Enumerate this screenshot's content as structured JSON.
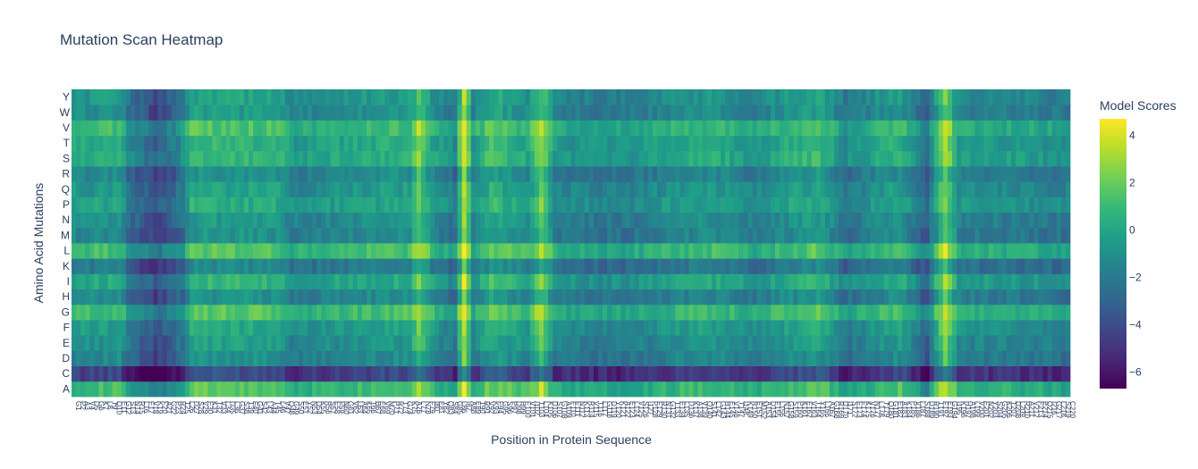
{
  "chart_data": {
    "type": "heatmap",
    "title": "Mutation Scan Heatmap",
    "xlabel": "Position in Protein Sequence",
    "ylabel": "Amino Acid Mutations",
    "y_categories": [
      "A",
      "C",
      "D",
      "E",
      "F",
      "G",
      "H",
      "I",
      "K",
      "L",
      "M",
      "N",
      "P",
      "Q",
      "R",
      "S",
      "T",
      "V",
      "W",
      "Y"
    ],
    "num_positions": 220,
    "colorscale": "Viridis",
    "colorscale_stops": [
      "#440154",
      "#482878",
      "#3e4989",
      "#31688e",
      "#26828e",
      "#1f9e89",
      "#35b779",
      "#6ece58",
      "#b5de2b",
      "#fde725"
    ],
    "zmin": -6.7,
    "zmax": 4.7,
    "colorbar": {
      "title": "Model Scores",
      "ticks": [
        4,
        2,
        0,
        -2,
        -4,
        -6
      ],
      "tick_labels": [
        "4",
        "2",
        "0",
        "−2",
        "−4",
        "−6"
      ]
    },
    "row_bias": {
      "A": 1.0,
      "C": -4.5,
      "D": -1.5,
      "E": -1.0,
      "F": -0.5,
      "G": 1.0,
      "H": -1.5,
      "I": 0.0,
      "K": -2.0,
      "L": 1.0,
      "M": -1.5,
      "N": -1.2,
      "P": -0.3,
      "Q": -0.8,
      "R": -1.5,
      "S": 0.2,
      "T": 0.0,
      "V": 0.8,
      "W": -1.2,
      "Y": -0.8
    },
    "column_profile_keypoints": [
      {
        "position": 0,
        "score": 0.0
      },
      {
        "position": 10,
        "score": 0.3
      },
      {
        "position": 12,
        "score": -1.0
      },
      {
        "position": 18,
        "score": -2.5
      },
      {
        "position": 24,
        "score": -1.0
      },
      {
        "position": 26,
        "score": 0.8
      },
      {
        "position": 45,
        "score": 0.5
      },
      {
        "position": 48,
        "score": -0.5
      },
      {
        "position": 60,
        "score": 0.0
      },
      {
        "position": 74,
        "score": 0.4
      },
      {
        "position": 76,
        "score": 2.5
      },
      {
        "position": 79,
        "score": 0.0
      },
      {
        "position": 84,
        "score": -1.0
      },
      {
        "position": 86,
        "score": 4.0
      },
      {
        "position": 88,
        "score": -0.5
      },
      {
        "position": 92,
        "score": 1.2
      },
      {
        "position": 100,
        "score": 0.0
      },
      {
        "position": 103,
        "score": 2.5
      },
      {
        "position": 106,
        "score": -0.5
      },
      {
        "position": 120,
        "score": -0.8
      },
      {
        "position": 140,
        "score": 0.2
      },
      {
        "position": 150,
        "score": -0.5
      },
      {
        "position": 164,
        "score": 0.8
      },
      {
        "position": 170,
        "score": -1.0
      },
      {
        "position": 182,
        "score": 0.5
      },
      {
        "position": 188,
        "score": -1.8
      },
      {
        "position": 192,
        "score": 3.0
      },
      {
        "position": 195,
        "score": -0.3
      },
      {
        "position": 210,
        "score": -0.5
      },
      {
        "position": 219,
        "score": -0.8
      }
    ],
    "x_tick_labels": [
      "G1",
      "P2",
      "A3",
      "V4",
      "D5",
      "G6",
      "K7",
      "L8",
      "T9",
      "Q10",
      "E11",
      "G12",
      "S13",
      "N14",
      "R15",
      "L16",
      "E17",
      "V18",
      "K19",
      "F20",
      "A21",
      "G22",
      "P23",
      "R24",
      "T25",
      "L26",
      "D27",
      "S28",
      "V29",
      "E30",
      "K31",
      "T32",
      "V33",
      "L34",
      "D35",
      "L36",
      "G37",
      "S38",
      "T39",
      "F40",
      "G41",
      "S42",
      "L43",
      "A44",
      "T45",
      "L46",
      "V47",
      "Q48",
      "G49",
      "S50",
      "E51",
      "Y52",
      "N53",
      "D54",
      "K55",
      "R56",
      "S57",
      "E58",
      "F59",
      "N60",
      "G61",
      "V62",
      "L63",
      "A64",
      "K65",
      "T66",
      "H67",
      "E68",
      "V69",
      "M70",
      "P71",
      "R72",
      "T73",
      "G74",
      "K75",
      "A76",
      "L77",
      "N78",
      "F79",
      "I80",
      "E81",
      "Y82",
      "Q83",
      "S84",
      "G85",
      "L86",
      "I87",
      "A88",
      "E89",
      "T90",
      "R91",
      "V92",
      "K93",
      "F94",
      "G95",
      "S96",
      "P97",
      "D98",
      "H99",
      "E100",
      "V101",
      "I102",
      "T103",
      "L104",
      "K105",
      "D106",
      "S107",
      "G108",
      "A109",
      "F110",
      "E111",
      "N112",
      "K113",
      "R114",
      "V115",
      "T116",
      "L117",
      "G118",
      "D119",
      "Y120",
      "K121",
      "A122",
      "E123",
      "L124",
      "V125",
      "S126",
      "I127",
      "P128",
      "F129",
      "R130",
      "N131",
      "G132",
      "T133",
      "E134",
      "L135",
      "D136",
      "K137",
      "A138",
      "V139",
      "Q140",
      "S141",
      "L142",
      "G143",
      "H144",
      "E145",
      "V146",
      "T147",
      "I148",
      "K149",
      "R150",
      "E151",
      "M152",
      "A153",
      "D154",
      "F155",
      "L156",
      "N157",
      "G158",
      "S159",
      "P160",
      "K161",
      "E162",
      "V163",
      "T164",
      "Y165",
      "L166",
      "A167",
      "G168",
      "R169",
      "D170",
      "I171",
      "S172",
      "E173",
      "F174",
      "K175",
      "V176",
      "N177",
      "L178",
      "T179",
      "Q180",
      "G181",
      "E182",
      "A183",
      "K184",
      "P185",
      "V186",
      "L187",
      "S188",
      "D189",
      "R190",
      "T191",
      "F192",
      "E193",
      "G194",
      "I195",
      "K196",
      "H197",
      "A198",
      "L199",
      "V200",
      "E201",
      "N202",
      "Y203",
      "S204",
      "G205",
      "K206",
      "T207",
      "D208",
      "L209",
      "R210",
      "A211",
      "V212",
      "F213",
      "E214",
      "Q215",
      "I216",
      "G217",
      "L218",
      "S219",
      "C220"
    ]
  }
}
